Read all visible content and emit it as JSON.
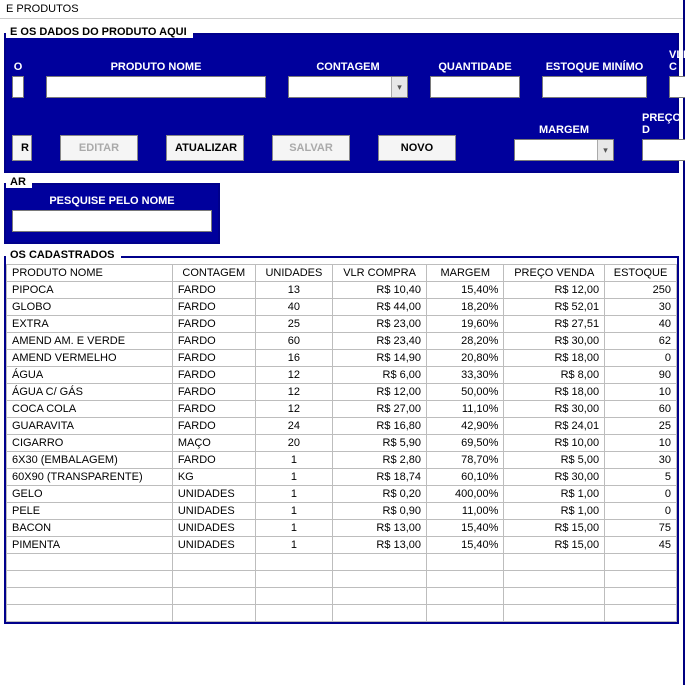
{
  "window": {
    "title": "E PRODUTOS"
  },
  "form": {
    "legend": "E OS DADOS DO PRODUTO AQUI",
    "labels": {
      "codigo": "O",
      "produto_nome": "PRODUTO NOME",
      "contagem": "CONTAGEM",
      "quantidade": "QUANTIDADE",
      "estoque_minimo": "ESTOQUE MINÍMO",
      "vlr_c": "VLR C",
      "margem": "MARGEM",
      "preco_d": "PREÇO D"
    },
    "buttons": {
      "r": "R",
      "editar": "EDITAR",
      "atualizar": "ATUALIZAR",
      "salvar": "SALVAR",
      "novo": "NOVO"
    }
  },
  "search": {
    "legend": "AR",
    "label": "PESQUISE PELO NOME"
  },
  "list": {
    "legend": "OS CADASTRADOS",
    "columns": {
      "produto_nome": "PRODUTO NOME",
      "contagem": "CONTAGEM",
      "unidades": "UNIDADES",
      "vlr_compra": "VLR COMPRA",
      "margem": "MARGEM",
      "preco_venda": "PREÇO VENDA",
      "estoque": "ESTOQUE"
    },
    "rows": [
      {
        "nome": "PIPOCA",
        "cont": "FARDO",
        "uni": "13",
        "vlr": "R$ 10,40",
        "marg": "15,40%",
        "pv": "R$ 12,00",
        "est": "250"
      },
      {
        "nome": "GLOBO",
        "cont": "FARDO",
        "uni": "40",
        "vlr": "R$ 44,00",
        "marg": "18,20%",
        "pv": "R$ 52,01",
        "est": "30"
      },
      {
        "nome": "EXTRA",
        "cont": "FARDO",
        "uni": "25",
        "vlr": "R$ 23,00",
        "marg": "19,60%",
        "pv": "R$ 27,51",
        "est": "40"
      },
      {
        "nome": "AMEND AM. E VERDE",
        "cont": "FARDO",
        "uni": "60",
        "vlr": "R$ 23,40",
        "marg": "28,20%",
        "pv": "R$ 30,00",
        "est": "62"
      },
      {
        "nome": "AMEND VERMELHO",
        "cont": "FARDO",
        "uni": "16",
        "vlr": "R$ 14,90",
        "marg": "20,80%",
        "pv": "R$ 18,00",
        "est": "0"
      },
      {
        "nome": "ÁGUA",
        "cont": "FARDO",
        "uni": "12",
        "vlr": "R$ 6,00",
        "marg": "33,30%",
        "pv": "R$ 8,00",
        "est": "90"
      },
      {
        "nome": "ÁGUA C/ GÁS",
        "cont": "FARDO",
        "uni": "12",
        "vlr": "R$ 12,00",
        "marg": "50,00%",
        "pv": "R$ 18,00",
        "est": "10"
      },
      {
        "nome": "COCA COLA",
        "cont": "FARDO",
        "uni": "12",
        "vlr": "R$ 27,00",
        "marg": "11,10%",
        "pv": "R$ 30,00",
        "est": "60"
      },
      {
        "nome": "GUARAVITA",
        "cont": "FARDO",
        "uni": "24",
        "vlr": "R$ 16,80",
        "marg": "42,90%",
        "pv": "R$ 24,01",
        "est": "25"
      },
      {
        "nome": "CIGARRO",
        "cont": "MAÇO",
        "uni": "20",
        "vlr": "R$ 5,90",
        "marg": "69,50%",
        "pv": "R$ 10,00",
        "est": "10"
      },
      {
        "nome": "6X30 (EMBALAGEM)",
        "cont": "FARDO",
        "uni": "1",
        "vlr": "R$ 2,80",
        "marg": "78,70%",
        "pv": "R$ 5,00",
        "est": "30"
      },
      {
        "nome": "60X90 (TRANSPARENTE)",
        "cont": "KG",
        "uni": "1",
        "vlr": "R$ 18,74",
        "marg": "60,10%",
        "pv": "R$ 30,00",
        "est": "5"
      },
      {
        "nome": "GELO",
        "cont": "UNIDADES",
        "uni": "1",
        "vlr": "R$ 0,20",
        "marg": "400,00%",
        "pv": "R$ 1,00",
        "est": "0"
      },
      {
        "nome": "PELE",
        "cont": "UNIDADES",
        "uni": "1",
        "vlr": "R$ 0,90",
        "marg": "11,00%",
        "pv": "R$ 1,00",
        "est": "0"
      },
      {
        "nome": "BACON",
        "cont": "UNIDADES",
        "uni": "1",
        "vlr": "R$ 13,00",
        "marg": "15,40%",
        "pv": "R$ 15,00",
        "est": "75"
      },
      {
        "nome": "PIMENTA",
        "cont": "UNIDADES",
        "uni": "1",
        "vlr": "R$ 13,00",
        "marg": "15,40%",
        "pv": "R$ 15,00",
        "est": "45"
      }
    ]
  }
}
